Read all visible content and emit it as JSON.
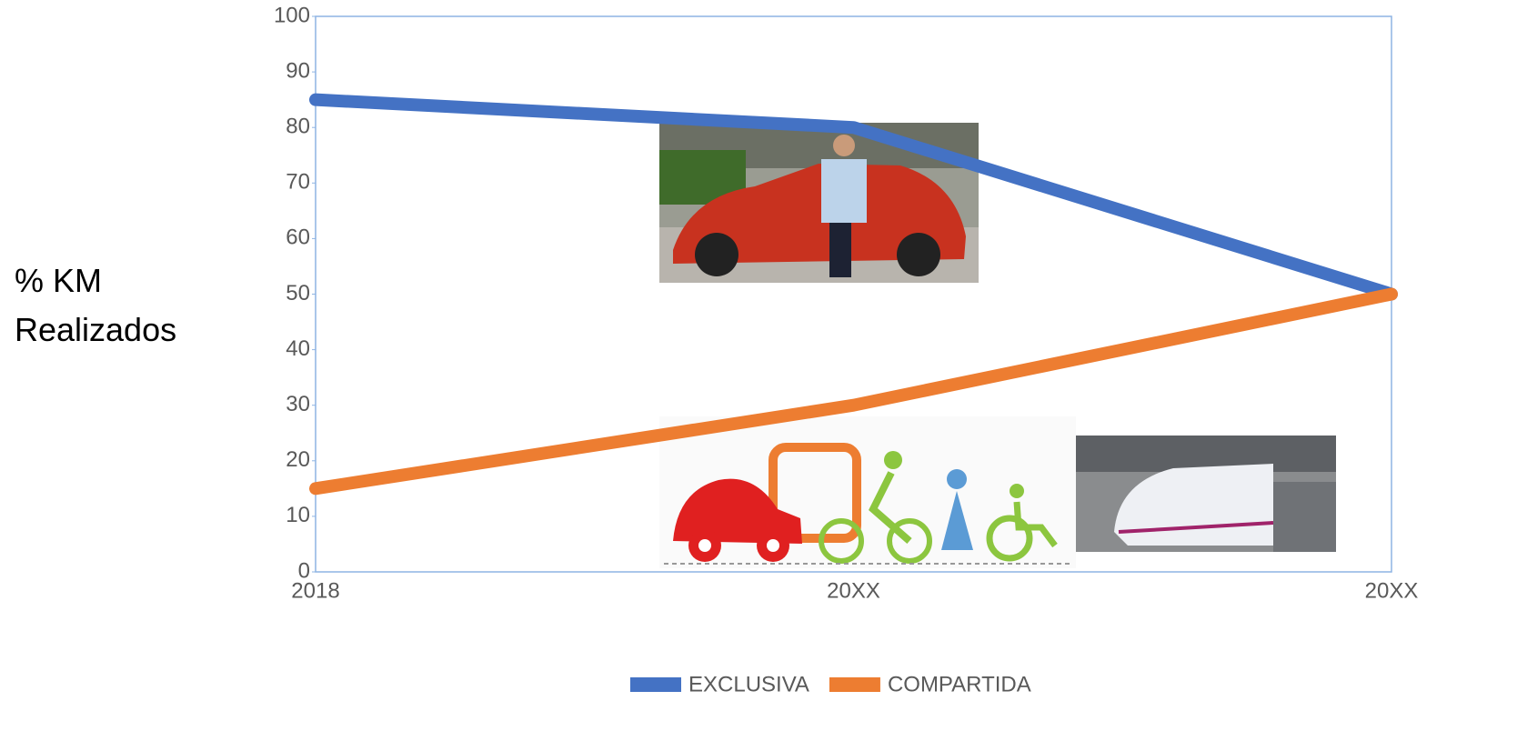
{
  "chart_data": {
    "type": "line",
    "y_label": "% KM Realizados",
    "categories": [
      "2018",
      "20XX",
      "20XX"
    ],
    "series": [
      {
        "name": "EXCLUSIVA",
        "color": "#4472c4",
        "values": [
          85,
          80,
          50
        ]
      },
      {
        "name": "COMPARTIDA",
        "color": "#ed7d31",
        "values": [
          15,
          30,
          50
        ]
      }
    ],
    "ylim": [
      0,
      100
    ],
    "yticks": [
      0,
      10,
      20,
      30,
      40,
      50,
      60,
      70,
      80,
      90,
      100
    ]
  }
}
